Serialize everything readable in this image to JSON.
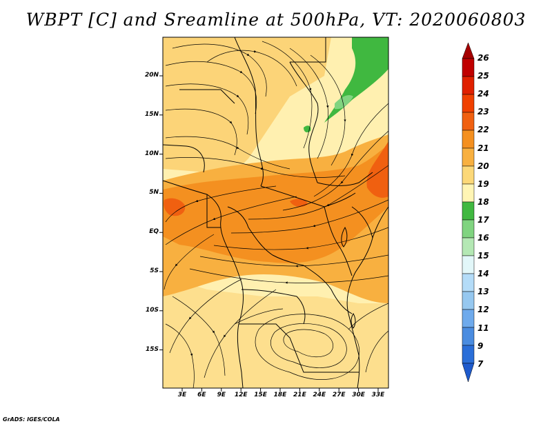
{
  "title": "WBPT [C] and Sreamline at 500hPa, VT: 2020060803",
  "footer": "GrADS: IGES/COLA",
  "map": {
    "lat_labels": [
      "20N",
      "15N",
      "10N",
      "5N",
      "EQ",
      "5S",
      "10S",
      "15S"
    ],
    "lon_labels": [
      "3E",
      "6E",
      "9E",
      "12E",
      "15E",
      "18E",
      "21E",
      "24E",
      "27E",
      "30E",
      "33E"
    ]
  },
  "colorbar": {
    "levels": [
      "26",
      "25",
      "24",
      "23",
      "22",
      "21",
      "20",
      "19",
      "18",
      "17",
      "16",
      "15",
      "14",
      "13",
      "12",
      "11",
      "9",
      "7"
    ],
    "colors": {
      "top_arrow": "#a50000",
      "c25_26": "#c00000",
      "c24_25": "#e02000",
      "c23_24": "#f04000",
      "c22_23": "#f06010",
      "c21_22": "#f49020",
      "c20_21": "#f8b040",
      "c19_20": "#fcd878",
      "c18_19": "#fff5b4",
      "c17_18": "#40b840",
      "c16_17": "#80d480",
      "c15_16": "#b4e8b4",
      "c14_15": "#e2f7f9",
      "c13_14": "#b4dcf8",
      "c12_13": "#96c8f0",
      "c11_12": "#6eaaec",
      "c9_11": "#4a8ce0",
      "c7_9": "#2a6ed8",
      "bottom_arrow": "#1e5acc"
    }
  },
  "field_colors": {
    "low": "#fff0b0",
    "mid": "#fcd478",
    "high": "#f8b040",
    "very_high": "#f49020",
    "peak": "#f06010",
    "green": "#40b840",
    "light_green": "#80d480"
  }
}
